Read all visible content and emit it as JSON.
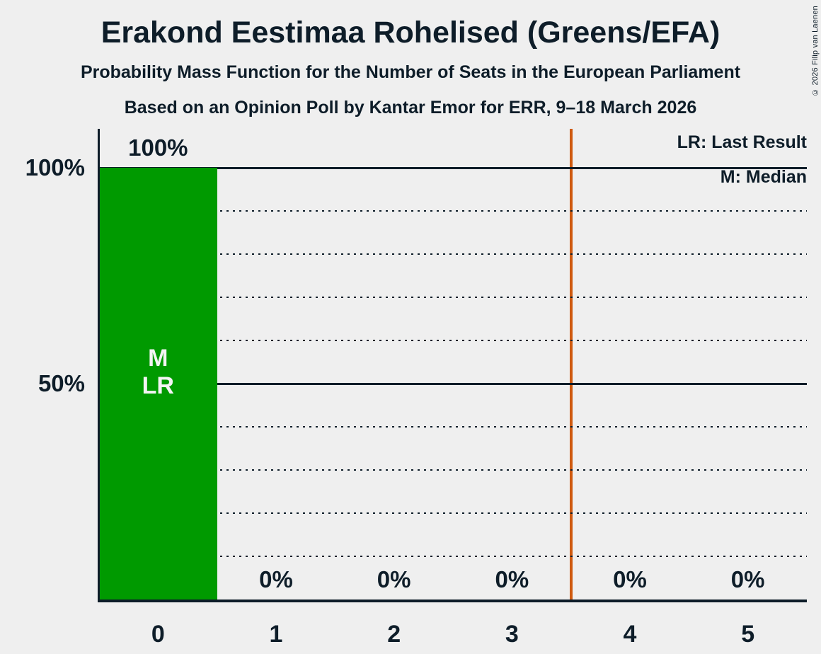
{
  "title": "Erakond Eestimaa Rohelised (Greens/EFA)",
  "subtitle1": "Probability Mass Function for the Number of Seats in the European Parliament",
  "subtitle2": "Based on an Opinion Poll by Kantar Emor for ERR, 9–18 March 2026",
  "copyright": "© 2026 Filip van Laenen",
  "legend": {
    "last_result": "LR: Last Result",
    "median": "M: Median"
  },
  "colors": {
    "background": "#efefef",
    "text": "#0e1d29",
    "bar": "#009a00",
    "last_result_line": "#cf5a10"
  },
  "chart_data": {
    "type": "bar",
    "title": "Erakond Eestimaa Rohelised (Greens/EFA)",
    "categories": [
      "0",
      "1",
      "2",
      "3",
      "4",
      "5"
    ],
    "values": [
      100,
      0,
      0,
      0,
      0,
      0
    ],
    "value_labels": [
      "100%",
      "0%",
      "0%",
      "0%",
      "0%",
      "0%"
    ],
    "ylim": [
      0,
      100
    ],
    "y_tick_labels": [
      {
        "pct": 100,
        "label": "100%"
      },
      {
        "pct": 50,
        "label": "50%"
      }
    ],
    "y_solid_gridlines": [
      100,
      50
    ],
    "y_dotted_gridlines": [
      90,
      80,
      70,
      60,
      40,
      30,
      20,
      10
    ],
    "grid": "horizontal",
    "legend_position": "top-right",
    "bar_annotations": [
      {
        "category_index": 0,
        "lines": [
          "M",
          "LR"
        ]
      }
    ],
    "last_result_line_between": [
      3,
      4
    ]
  }
}
